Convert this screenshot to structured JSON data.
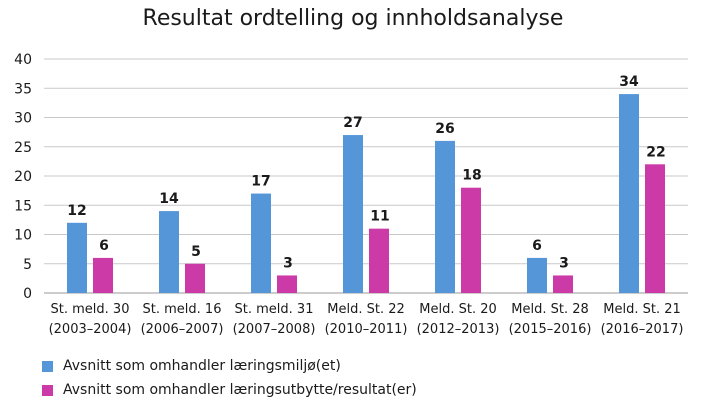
{
  "chart_data": {
    "type": "bar",
    "title": "Resultat ordtelling og innholdsanalyse",
    "xlabel": "",
    "ylabel": "",
    "ylim": [
      0,
      40
    ],
    "yticks": [
      "0",
      "5",
      "10",
      "15",
      "20",
      "25",
      "30",
      "35",
      "40"
    ],
    "grid": "horizontal",
    "legend_position": "bottom-left",
    "categories": [
      [
        "St. meld. 30",
        "(2003–2004)"
      ],
      [
        "St. meld. 16",
        "(2006–2007)"
      ],
      [
        "St. meld. 31",
        "(2007–2008)"
      ],
      [
        "Meld. St. 22",
        "(2010–2011)"
      ],
      [
        "Meld. St. 20",
        "(2012–2013)"
      ],
      [
        "Meld. St. 28",
        "(2015–2016)"
      ],
      [
        "Meld. St. 21",
        "(2016–2017)"
      ]
    ],
    "series": [
      {
        "name": "Avsnitt som omhandler læringsmiljø(et)",
        "color": "#5596d9",
        "values": [
          12,
          14,
          17,
          27,
          26,
          6,
          34
        ]
      },
      {
        "name": "Avsnitt som omhandler læringsutbytte/resultat(er)",
        "color": "#cc3aa8",
        "values": [
          6,
          5,
          3,
          11,
          18,
          3,
          22
        ]
      }
    ]
  }
}
